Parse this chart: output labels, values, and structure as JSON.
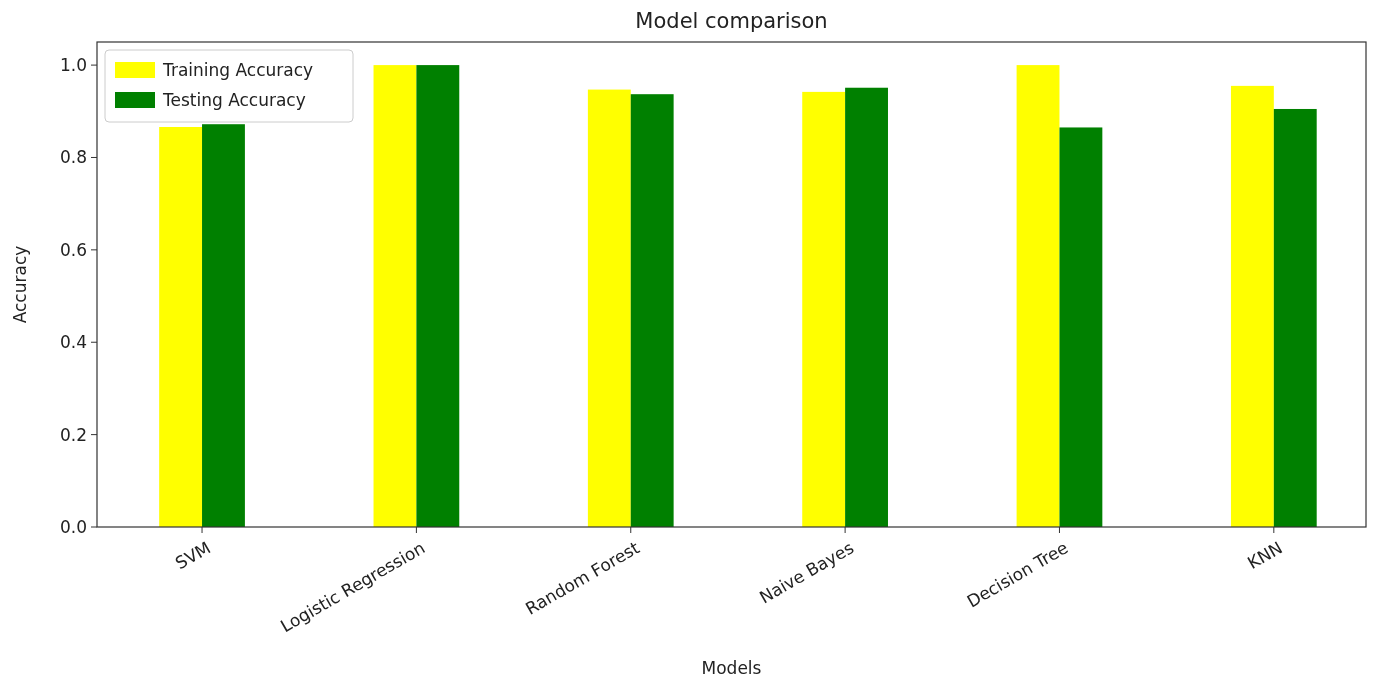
{
  "chart_data": {
    "type": "bar",
    "title": "Model comparison",
    "xlabel": "Models",
    "ylabel": "Accuracy",
    "categories": [
      "SVM",
      "Logistic Regression",
      "Random Forest",
      "Naive Bayes",
      "Decision Tree",
      "KNN"
    ],
    "series": [
      {
        "name": "Training Accuracy",
        "color": "#ffff00",
        "values": [
          0.866,
          1.0,
          0.947,
          0.942,
          1.0,
          0.955
        ]
      },
      {
        "name": "Testing Accuracy",
        "color": "#008000",
        "values": [
          0.872,
          1.0,
          0.937,
          0.951,
          0.865,
          0.905
        ]
      }
    ],
    "ylim": [
      0,
      1.05
    ],
    "yticks": [
      {
        "value": 0,
        "label": "0.0"
      },
      {
        "value": 0.2,
        "label": "0.2"
      },
      {
        "value": 0.4,
        "label": "0.4"
      },
      {
        "value": 0.6,
        "label": "0.6"
      },
      {
        "value": 0.8,
        "label": "0.8"
      },
      {
        "value": 1.0,
        "label": "1.0"
      }
    ],
    "legend": "top left",
    "grid": false
  }
}
